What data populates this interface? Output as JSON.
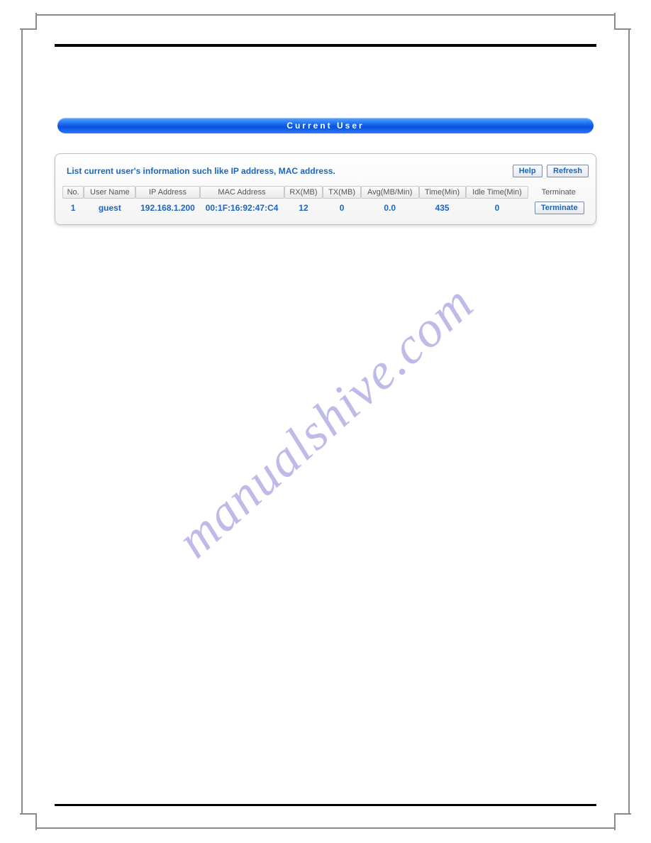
{
  "title_bar": {
    "text": "Current User"
  },
  "panel": {
    "description": "List current user's information such like IP address, MAC address.",
    "buttons": {
      "help": "Help",
      "refresh": "Refresh"
    },
    "table": {
      "headers": {
        "no": "No.",
        "user_name": "User Name",
        "ip_address": "IP Address",
        "mac_address": "MAC Address",
        "rx_mb": "RX(MB)",
        "tx_mb": "TX(MB)",
        "avg": "Avg(MB/Min)",
        "time": "Time(Min)",
        "idle": "Idle Time(Min)",
        "terminate": "Terminate"
      },
      "row": {
        "no": "1",
        "user_name": "guest",
        "ip_address": "192.168.1.200",
        "mac_address": "00:1F:16:92:47:C4",
        "rx_mb": "12",
        "tx_mb": "0",
        "avg": "0.0",
        "time": "435",
        "idle": "0",
        "terminate_btn": "Terminate"
      }
    }
  },
  "watermark": "manualshive.com",
  "colors": {
    "link_blue": "#1a66c2",
    "bar_blue_top": "#5aa8ff",
    "bar_blue_bottom": "#0a4fe0",
    "watermark": "#8a84d6",
    "frame": "#8a8a8a"
  }
}
